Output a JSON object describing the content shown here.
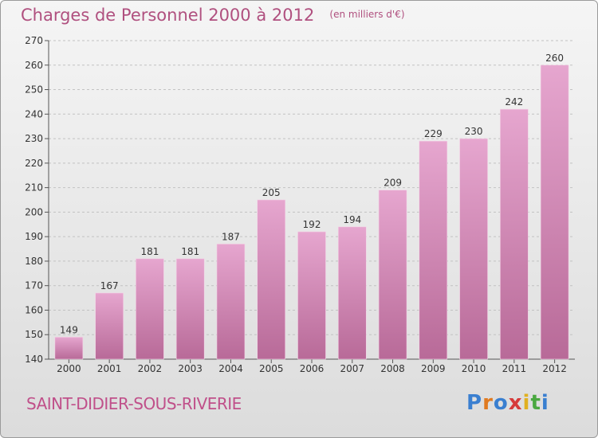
{
  "header": {
    "title": "Charges de Personnel 2000 à 2012",
    "subtitle": "(en milliers d'€)"
  },
  "footer": {
    "commune": "SAINT-DIDIER-SOUS-RIVERIE",
    "logo_letters": [
      {
        "ch": "P",
        "color": "#3a7fd0"
      },
      {
        "ch": "r",
        "color": "#e07a20"
      },
      {
        "ch": "o",
        "color": "#3a7fd0"
      },
      {
        "ch": "x",
        "color": "#d63a3a"
      },
      {
        "ch": "i",
        "color": "#e0b020"
      },
      {
        "ch": "t",
        "color": "#4aa840"
      },
      {
        "ch": "i",
        "color": "#3a7fd0"
      }
    ]
  },
  "colors": {
    "bar_top": "#e6a6cf",
    "bar_bottom": "#b86a98",
    "accent": "#b0507f"
  },
  "chart_data": {
    "type": "bar",
    "categories": [
      "2000",
      "2001",
      "2002",
      "2003",
      "2004",
      "2005",
      "2006",
      "2007",
      "2008",
      "2009",
      "2010",
      "2011",
      "2012"
    ],
    "values": [
      149,
      167,
      181,
      181,
      187,
      205,
      192,
      194,
      209,
      229,
      230,
      242,
      260
    ],
    "ylim": [
      140,
      270
    ],
    "yticks": [
      140,
      150,
      160,
      170,
      180,
      190,
      200,
      210,
      220,
      230,
      240,
      250,
      260,
      270
    ],
    "grid": "horizontal-dashed"
  }
}
